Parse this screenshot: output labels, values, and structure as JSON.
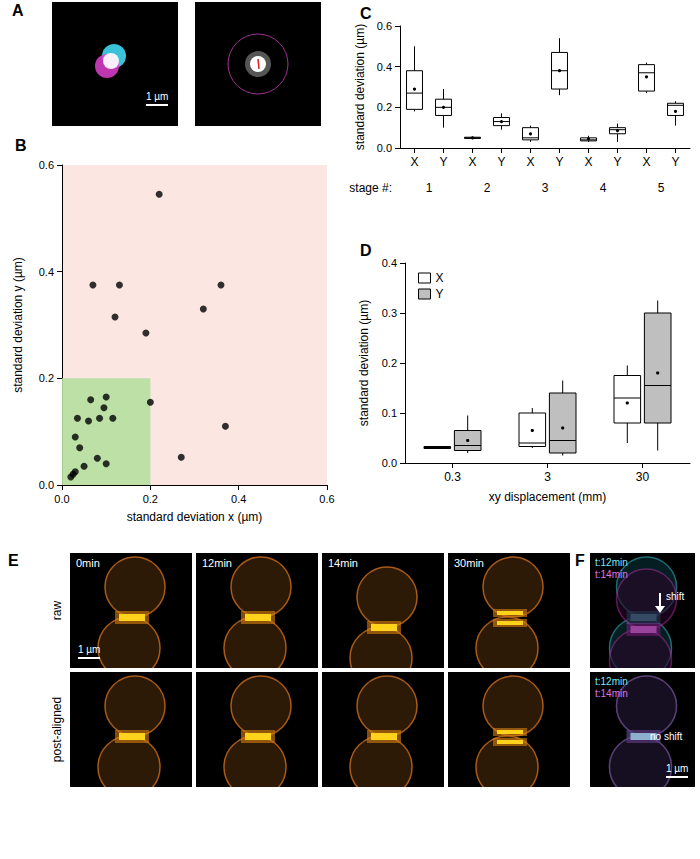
{
  "panels": {
    "A": {
      "label": "A",
      "scale_bar": "1 µm"
    },
    "E": {
      "label": "E",
      "times": [
        "0min",
        "12min",
        "14min",
        "30min"
      ],
      "rows": [
        "raw",
        "post-aligned"
      ],
      "scale_bar": "1 µm"
    },
    "F": {
      "label": "F",
      "top": {
        "times": [
          "t:12min",
          "t:14min"
        ],
        "annotation": "shift"
      },
      "bottom": {
        "times": [
          "t:12min",
          "t:14min"
        ],
        "annotation": "no shift",
        "scale_bar": "1 µm"
      }
    }
  },
  "chart_data": [
    {
      "title": "B",
      "type": "scatter",
      "x_label": "standard deviation x (µm)",
      "y_label": "standard deviation y (µm)",
      "x": [
        0.22,
        0.07,
        0.13,
        0.36,
        0.12,
        0.32,
        0.19,
        0.27,
        0.37,
        0.2,
        0.1,
        0.065,
        0.06,
        0.035,
        0.085,
        0.095,
        0.115,
        0.03,
        0.04,
        0.08,
        0.1,
        0.05,
        0.03,
        0.025,
        0.02
      ],
      "values": [
        0.545,
        0.375,
        0.375,
        0.375,
        0.315,
        0.33,
        0.285,
        0.052,
        0.11,
        0.155,
        0.165,
        0.16,
        0.12,
        0.125,
        0.125,
        0.145,
        0.125,
        0.09,
        0.07,
        0.05,
        0.04,
        0.035,
        0.025,
        0.02,
        0.015
      ],
      "color": "#000000",
      "highlight_region": {
        "x": [
          0,
          0.2
        ],
        "y": [
          0,
          0.2
        ]
      },
      "xlim": [
        0,
        0.6
      ],
      "xticks": [
        {
          "value": 0,
          "label": "0.0"
        },
        0.2,
        0.4,
        0.6
      ],
      "ylim": [
        0,
        0.6
      ],
      "yticks": [
        {
          "value": 0,
          "label": "0.0"
        },
        0.2,
        0.4,
        0.6
      ],
      "grid": false
    },
    {
      "title": "C",
      "type": "boxplot",
      "y_label": "standard deviation (µm)",
      "categories": [
        "X",
        "Y",
        "X",
        "Y",
        "X",
        "Y",
        "X",
        "Y",
        "X",
        "Y"
      ],
      "groups": [
        1,
        2,
        3,
        4,
        5
      ],
      "group_label": "stage #:",
      "values": [
        [
          0.18,
          0.19,
          0.27,
          0.38,
          0.5
        ],
        [
          0.1,
          0.16,
          0.2,
          0.24,
          0.29
        ],
        [
          0.045,
          0.047,
          0.05,
          0.053,
          0.055
        ],
        [
          0.09,
          0.11,
          0.13,
          0.15,
          0.17
        ],
        [
          0.03,
          0.04,
          0.05,
          0.1,
          0.11
        ],
        [
          0.26,
          0.29,
          0.38,
          0.47,
          0.54
        ],
        [
          0.03,
          0.035,
          0.04,
          0.05,
          0.06
        ],
        [
          0.03,
          0.07,
          0.09,
          0.1,
          0.12
        ],
        [
          0.27,
          0.28,
          0.37,
          0.41,
          0.42
        ],
        [
          0.11,
          0.16,
          0.21,
          0.22,
          0.23
        ]
      ],
      "means": [
        0.29,
        0.2,
        0.05,
        0.13,
        0.07,
        0.38,
        0.045,
        0.085,
        0.35,
        0.18
      ],
      "color": "#ffffff",
      "ylim": [
        0,
        0.6
      ],
      "yticks": [
        {
          "value": 0,
          "label": "0.0"
        },
        0.2,
        0.4,
        0.6
      ],
      "grid": false
    },
    {
      "title": "D",
      "type": "boxplot",
      "x_label": "xy displacement (mm)",
      "y_label": "standard deviation (µm)",
      "categories": [
        "0.3",
        "3",
        "30"
      ],
      "series": [
        {
          "name": "X",
          "color": "#ffffff",
          "values": [
            [
              0.028,
              0.029,
              0.031,
              0.033,
              0.034
            ],
            [
              0.03,
              0.033,
              0.04,
              0.1,
              0.11
            ],
            [
              0.04,
              0.08,
              0.13,
              0.175,
              0.195
            ]
          ],
          "means": [
            0.031,
            0.065,
            0.12
          ]
        },
        {
          "name": "Y",
          "color": "#bfbfbf",
          "values": [
            [
              0.02,
              0.025,
              0.035,
              0.065,
              0.095
            ],
            [
              0.015,
              0.02,
              0.045,
              0.14,
              0.165
            ],
            [
              0.025,
              0.08,
              0.155,
              0.3,
              0.325
            ]
          ],
          "means": [
            0.045,
            0.07,
            0.18
          ]
        }
      ],
      "legend": "upper left",
      "ylim": [
        0,
        0.4
      ],
      "yticks": [
        {
          "value": 0,
          "label": "0.0"
        },
        0.1,
        0.2,
        0.3,
        0.4
      ],
      "grid": false
    }
  ]
}
